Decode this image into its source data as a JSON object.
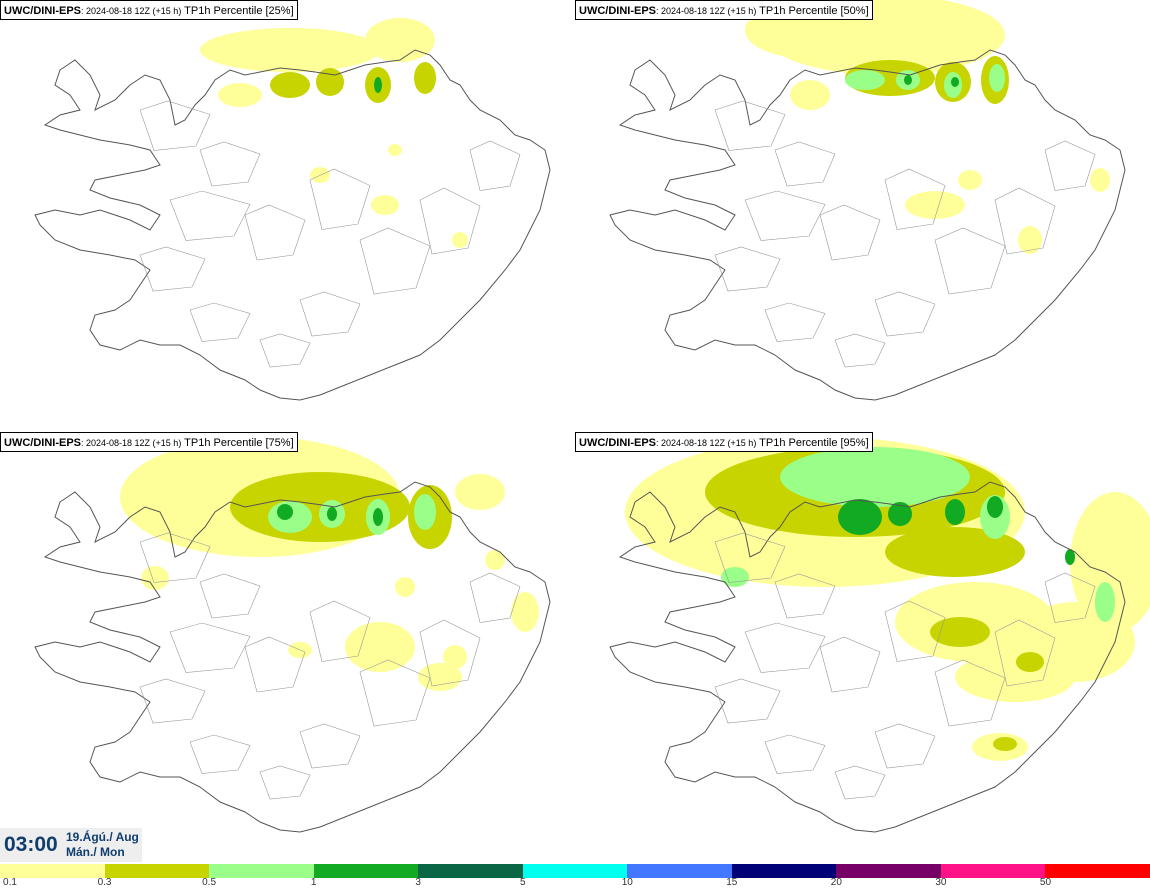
{
  "panels": [
    {
      "model": "UWC/DINI-EPS",
      "run": ": 2024-08-18 12Z (+15 h)",
      "variable": " TP1h Percentile [25%]"
    },
    {
      "model": "UWC/DINI-EPS",
      "run": ": 2024-08-18 12Z (+15 h)",
      "variable": " TP1h Percentile [50%]"
    },
    {
      "model": "UWC/DINI-EPS",
      "run": ": 2024-08-18 12Z (+15 h)",
      "variable": " TP1h Percentile [75%]"
    },
    {
      "model": "UWC/DINI-EPS",
      "run": ": 2024-08-18 12Z (+15 h)",
      "variable": " TP1h Percentile [95%]"
    }
  ],
  "time": {
    "clock": "03:00",
    "date_line1": "19.Ágú./ Aug",
    "date_line2": "Mán./ Mon"
  },
  "legend": {
    "ticks": [
      "0.1",
      "0.3",
      "0.5",
      "1",
      "3",
      "5",
      "10",
      "15",
      "20",
      "30",
      "50"
    ],
    "colors": [
      "#ffff99",
      "#c8d400",
      "#99ff88",
      "#11aa22",
      "#0a6644",
      "#00ffee",
      "#4477ff",
      "#000077",
      "#770066",
      "#ff1188",
      "#ff0000"
    ]
  }
}
